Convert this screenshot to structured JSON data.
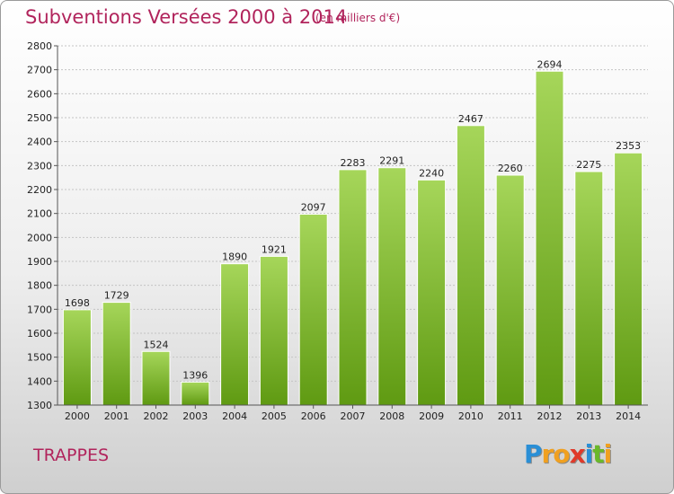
{
  "chart_data": {
    "type": "bar",
    "title": "Subventions Versées 2000 à 2014",
    "subtitle": "(en milliers d'€)",
    "categories": [
      "2000",
      "2001",
      "2002",
      "2003",
      "2004",
      "2005",
      "2006",
      "2007",
      "2008",
      "2009",
      "2010",
      "2011",
      "2012",
      "2013",
      "2014"
    ],
    "values": [
      1698,
      1729,
      1524,
      1396,
      1890,
      1921,
      2097,
      2283,
      2291,
      2240,
      2467,
      2260,
      2694,
      2275,
      2353
    ],
    "ylim": [
      1300,
      2800
    ],
    "yticks": [
      1300,
      1400,
      1500,
      1600,
      1700,
      1800,
      1900,
      2000,
      2100,
      2200,
      2300,
      2400,
      2500,
      2600,
      2700,
      2800
    ],
    "grid": true,
    "bar_color_top": "#a6d65a",
    "bar_color_bottom": "#5f9a12"
  },
  "footer": {
    "city": "TRAPPES",
    "logo_letters": [
      "P",
      "r",
      "o",
      "x",
      "i",
      "t",
      "i"
    ],
    "logo_colors": [
      "#2a8fd6",
      "#f0a020",
      "#f0a020",
      "#e03a2a",
      "#2a8fd6",
      "#6ab82a",
      "#f0a020"
    ]
  }
}
